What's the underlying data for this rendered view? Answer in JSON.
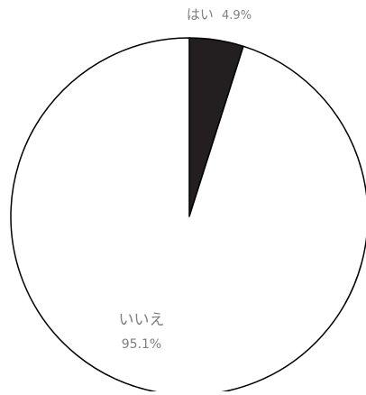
{
  "chart_data": {
    "type": "pie",
    "title": "",
    "slices": [
      {
        "label": "はい",
        "value": 4.9,
        "display": "4.9%",
        "color": "#231f20"
      },
      {
        "label": "いいえ",
        "value": 95.1,
        "display": "95.1%",
        "color": "#ffffff"
      }
    ],
    "legend": "none",
    "outline_color": "#000000",
    "label_color": "#7f7f7f"
  }
}
